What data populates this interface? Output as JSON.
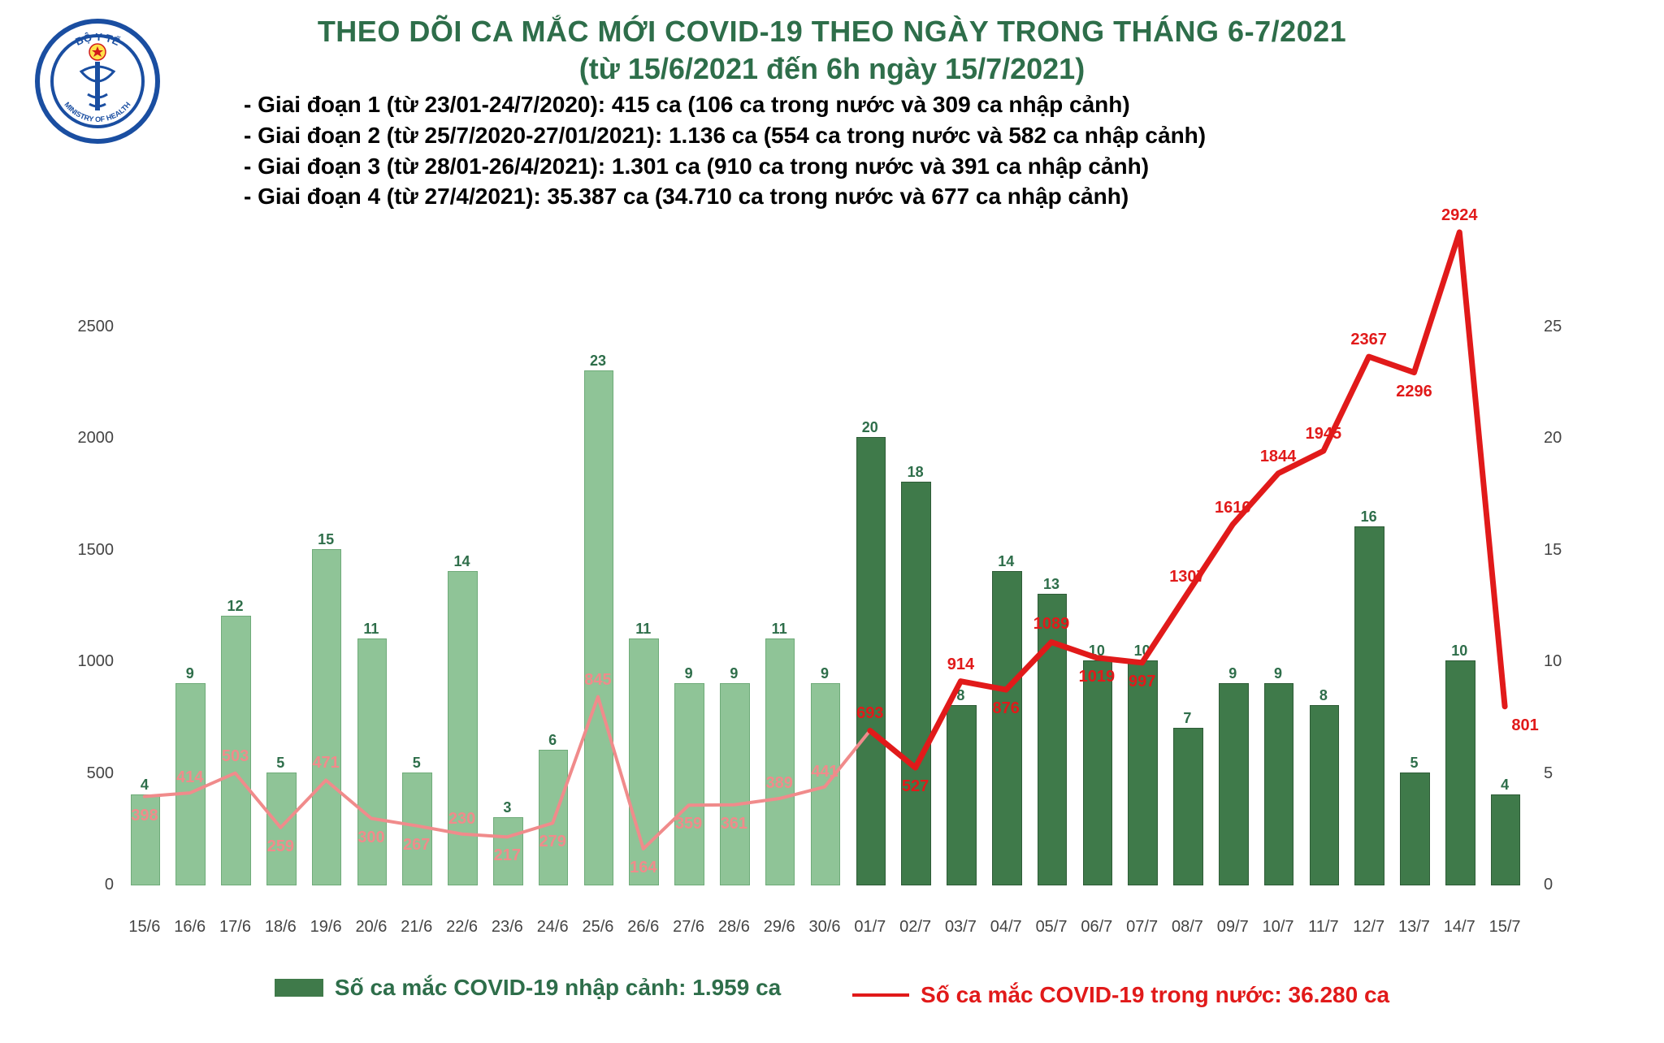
{
  "logo": {
    "ring_color": "#1a4ea1",
    "star_fill": "#d11a1a",
    "star_bg": "#ffe24a",
    "text_top": "BỘ Y TẾ",
    "text_bottom": "MINISTRY OF HEALTH"
  },
  "title": {
    "line1": "THEO DÕI CA MẮC MỚI COVID-19 THEO NGÀY TRONG THÁNG 6-7/2021",
    "line2": "(từ 15/6/2021 đến 6h ngày 15/7/2021)",
    "color": "#2e6e4a",
    "fontsize": 36
  },
  "periods": [
    "- Giai đoạn 1 (từ 23/01-24/7/2020): 415 ca (106 ca trong nước và 309 ca nhập cảnh)",
    "- Giai đoạn 2 (từ 25/7/2020-27/01/2021): 1.136 ca (554 ca trong nước và 582 ca nhập cảnh)",
    "- Giai đoạn 3 (từ 28/01-26/4/2021): 1.301 ca (910 ca trong nước và 391 ca nhập cảnh)",
    "- Giai đoạn 4 (từ 27/4/2021): 35.387 ca (34.710 ca trong nước và 677 ca nhập cảnh)"
  ],
  "chart": {
    "type": "bar+line",
    "background": "#ffffff",
    "categories": [
      "15/6",
      "16/6",
      "17/6",
      "18/6",
      "19/6",
      "20/6",
      "21/6",
      "22/6",
      "23/6",
      "24/6",
      "25/6",
      "26/6",
      "27/6",
      "28/6",
      "29/6",
      "30/6",
      "01/7",
      "02/7",
      "03/7",
      "04/7",
      "05/7",
      "06/7",
      "07/7",
      "08/7",
      "09/7",
      "10/7",
      "11/7",
      "12/7",
      "13/7",
      "14/7",
      "15/7"
    ],
    "left_axis": {
      "min": 0,
      "max": 2800,
      "ticks": [
        0,
        500,
        1000,
        1500,
        2000,
        2500
      ],
      "fontsize": 20,
      "color": "#444444"
    },
    "right_axis": {
      "min": 0,
      "max": 28,
      "ticks": [
        0,
        5,
        10,
        15,
        20,
        25
      ],
      "fontsize": 20,
      "color": "#444444"
    },
    "bars": {
      "values": [
        4,
        9,
        12,
        5,
        15,
        11,
        5,
        14,
        3,
        6,
        23,
        11,
        9,
        9,
        11,
        9,
        20,
        18,
        8,
        14,
        13,
        10,
        10,
        7,
        9,
        9,
        8,
        16,
        5,
        10,
        4
      ],
      "axis": "right",
      "dark_indices_from": 16,
      "fill_light": "#8fc497",
      "fill_dark": "#3f7a4a",
      "border_light": "#6fab79",
      "border_dark": "#2e5c37",
      "label_color": "#2e6e4a",
      "label_fontsize": 18,
      "bar_width_ratio": 0.62
    },
    "line": {
      "values": [
        398,
        414,
        503,
        259,
        471,
        300,
        267,
        230,
        217,
        279,
        845,
        164,
        359,
        361,
        389,
        441,
        693,
        527,
        914,
        876,
        1089,
        1019,
        997,
        1307,
        1616,
        1844,
        1945,
        2367,
        2296,
        2924,
        801
      ],
      "axis": "left",
      "bold_from_index": 16,
      "color_light": "#f08b8b",
      "color_dark": "#e11a1a",
      "stroke_light": 4,
      "stroke_dark": 7,
      "label_fontsize": 20,
      "label_offsets_y": [
        22,
        -20,
        -22,
        22,
        -22,
        22,
        22,
        -20,
        22,
        22,
        -22,
        22,
        22,
        22,
        -20,
        -20,
        -22,
        22,
        -22,
        22,
        -24,
        22,
        22,
        -22,
        -22,
        -22,
        -22,
        -22,
        22,
        -22,
        22
      ],
      "label_offsets_x": [
        0,
        0,
        0,
        0,
        0,
        0,
        0,
        0,
        0,
        0,
        0,
        0,
        0,
        0,
        0,
        0,
        0,
        0,
        0,
        0,
        0,
        0,
        0,
        0,
        0,
        0,
        0,
        0,
        0,
        0,
        25
      ]
    }
  },
  "legend": {
    "bar": {
      "label": "Số ca mắc COVID-19 nhập cảnh: 1.959 ca",
      "color_text": "#2e6e4a",
      "swatch": "#3f7a4a"
    },
    "line": {
      "label": "Số ca mắc COVID-19 trong nước: 36.280 ca",
      "color_text": "#e11a1a",
      "swatch": "#e11a1a"
    }
  }
}
